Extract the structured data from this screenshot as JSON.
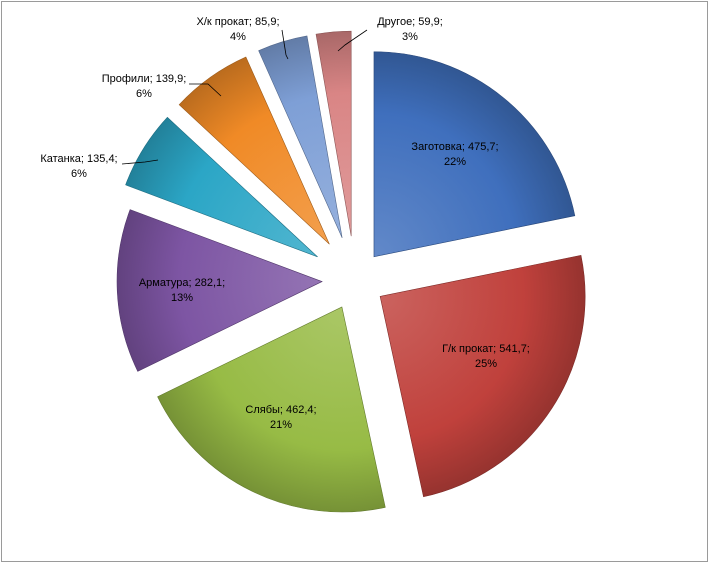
{
  "chart_data": {
    "type": "pie",
    "exploded": true,
    "title": "",
    "legend": "none",
    "slices": [
      {
        "name": "Заготовка",
        "value": 475.7,
        "value_label": "475,7",
        "percent_label": "22%",
        "color": "#3f6fbd"
      },
      {
        "name": "Г/к прокат",
        "value": 541.7,
        "value_label": "541,7",
        "percent_label": "25%",
        "color": "#c0413c"
      },
      {
        "name": "Слябы",
        "value": 462.4,
        "value_label": "462,4",
        "percent_label": "21%",
        "color": "#97bb45"
      },
      {
        "name": "Арматура",
        "value": 282.1,
        "value_label": "282,1",
        "percent_label": "13%",
        "color": "#7d55a3"
      },
      {
        "name": "Катанка",
        "value": 135.4,
        "value_label": "135,4",
        "percent_label": "6%",
        "color": "#2ba6c6"
      },
      {
        "name": "Профили",
        "value": 139.9,
        "value_label": "139,9",
        "percent_label": "6%",
        "color": "#f08a26"
      },
      {
        "name": "Х/к прокат",
        "value": 85.9,
        "value_label": "85,9",
        "percent_label": "4%",
        "color": "#7e9fd6"
      },
      {
        "name": "Другое",
        "value": 59.9,
        "value_label": "59,9",
        "percent_label": "3%",
        "color": "#d98585"
      }
    ]
  }
}
